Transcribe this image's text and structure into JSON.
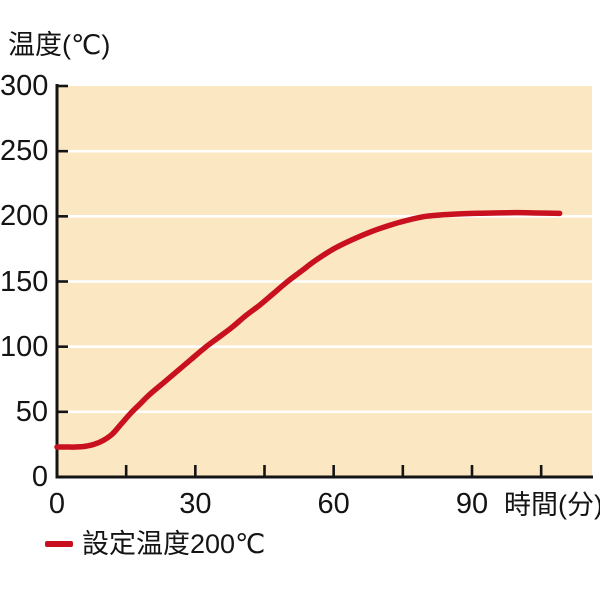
{
  "chart_data": {
    "type": "line",
    "title": "温度(℃)",
    "xlabel": "時間(分)",
    "ylabel": "温度(℃)",
    "xlim": [
      0,
      116
    ],
    "ylim": [
      0,
      300
    ],
    "x_tick_labels": [
      "0",
      "30",
      "60",
      "90"
    ],
    "x_tick_values": [
      0,
      30,
      60,
      90
    ],
    "x_minor_ticks": [
      15,
      30,
      45,
      60,
      75,
      90,
      105
    ],
    "y_tick_labels": [
      "300",
      "250",
      "200",
      "150",
      "100",
      "50",
      "0"
    ],
    "y_tick_values": [
      300,
      250,
      200,
      150,
      100,
      50,
      0
    ],
    "y_gridlines": [
      50,
      100,
      150,
      200,
      250
    ],
    "grid": "horizontal white gridlines every 50 on peach plot background",
    "legend_position": "below-chart-left",
    "plot_bg_color": "#FBE7C2",
    "gridline_color": "#FFFFFF",
    "axis_color": "#141414",
    "series": [
      {
        "name": "設定温度200℃",
        "color": "#C8101E",
        "x": [
          0,
          2,
          4,
          6,
          8,
          10,
          12,
          14,
          16,
          18,
          20,
          23,
          26,
          29,
          32,
          35,
          38,
          41,
          44,
          47,
          50,
          53,
          56,
          60,
          64,
          68,
          72,
          76,
          80,
          84,
          88,
          92,
          96,
          100,
          104,
          109
        ],
        "y": [
          23,
          23,
          23,
          23.5,
          25,
          28,
          33,
          41,
          49,
          56,
          63,
          72,
          81,
          90,
          99,
          107,
          115,
          124,
          132,
          141,
          150,
          158,
          166,
          175,
          182,
          188,
          193,
          197,
          200,
          201.3,
          202,
          202.4,
          202.7,
          202.8,
          202.6,
          202.3
        ]
      }
    ]
  },
  "legend": {
    "items": [
      {
        "label": "設定温度200℃",
        "color": "#C8101E"
      }
    ]
  }
}
